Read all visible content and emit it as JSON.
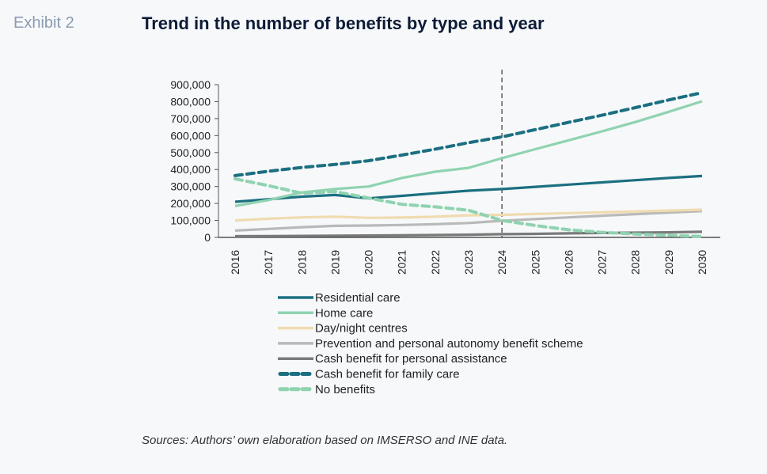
{
  "header": {
    "exhibit": "Exhibit 2",
    "title": "Trend in the number of benefits by type and year"
  },
  "source": "Sources: Authors’ own elaboration based on IMSERSO and INE data.",
  "chart_data": {
    "type": "line",
    "title": "Trend in the number of benefits by type and year",
    "xlabel": "",
    "ylabel": "",
    "x": [
      "2016",
      "2017",
      "2018",
      "2019",
      "2020",
      "2021",
      "2022",
      "2023",
      "2024",
      "2025",
      "2026",
      "2027",
      "2028",
      "2029",
      "2030"
    ],
    "ylim": [
      0,
      900000
    ],
    "yticks": [
      0,
      100000,
      200000,
      300000,
      400000,
      500000,
      600000,
      700000,
      800000,
      900000
    ],
    "ytick_labels": [
      "0",
      "100,000",
      "200,000",
      "300,000",
      "400,000",
      "500,000",
      "600,000",
      "700,000",
      "800,000",
      "900,000"
    ],
    "grid": false,
    "legend_position": "bottom",
    "annotations": [
      {
        "type": "vertical-dashed-line",
        "x": "2024",
        "meaning": "start of projection"
      }
    ],
    "series": [
      {
        "name": "Residential care",
        "color": "#1b6f80",
        "style": "solid",
        "values": [
          210000,
          225000,
          240000,
          250000,
          230000,
          245000,
          260000,
          275000,
          285000,
          298000,
          311000,
          324000,
          337000,
          350000,
          362000
        ]
      },
      {
        "name": "Home care",
        "color": "#8fd3b0",
        "style": "solid",
        "values": [
          185000,
          220000,
          265000,
          285000,
          300000,
          350000,
          387000,
          410000,
          467000,
          520000,
          572000,
          625000,
          680000,
          740000,
          802000
        ]
      },
      {
        "name": "Day/night centres",
        "color": "#f0dbb0",
        "style": "solid",
        "values": [
          100000,
          110000,
          118000,
          122000,
          115000,
          117000,
          122000,
          130000,
          133000,
          138000,
          143000,
          148000,
          153000,
          158000,
          163000
        ]
      },
      {
        "name": "Prevention and personal autonomy benefit scheme",
        "color": "#b9b9b9",
        "style": "solid",
        "values": [
          40000,
          50000,
          60000,
          68000,
          70000,
          73000,
          78000,
          85000,
          98000,
          108000,
          118000,
          128000,
          137000,
          146000,
          155000
        ]
      },
      {
        "name": "Cash benefit for personal assistance",
        "color": "#7a7a7a",
        "style": "solid",
        "values": [
          7000,
          8000,
          9000,
          10000,
          11000,
          12000,
          14000,
          16000,
          19000,
          21000,
          24000,
          26000,
          28000,
          30000,
          33000
        ]
      },
      {
        "name": "Cash benefit for family care",
        "color": "#1b6f80",
        "style": "dashed",
        "values": [
          364000,
          390000,
          412000,
          430000,
          452000,
          485000,
          520000,
          558000,
          592000,
          635000,
          678000,
          720000,
          765000,
          810000,
          853000
        ]
      },
      {
        "name": "No benefits",
        "color": "#8fd3b0",
        "style": "dashed",
        "values": [
          345000,
          305000,
          260000,
          270000,
          232000,
          195000,
          180000,
          160000,
          100000,
          70000,
          45000,
          30000,
          20000,
          12000,
          5000
        ]
      }
    ]
  }
}
